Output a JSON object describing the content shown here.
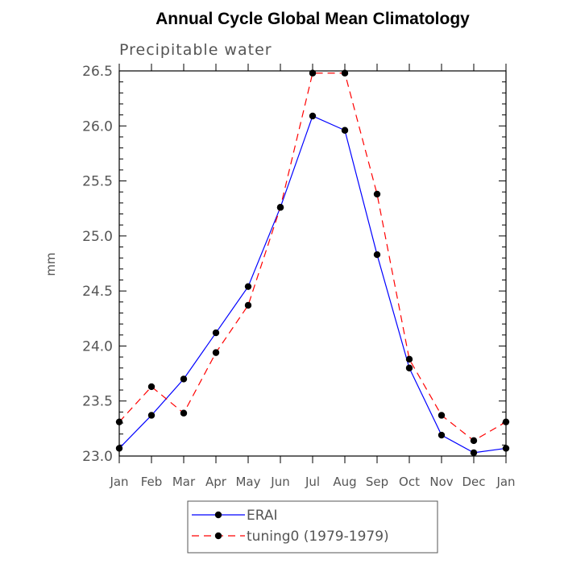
{
  "chart_data": {
    "type": "line",
    "title": "Annual Cycle Global Mean Climatology",
    "subtitle": "Precipitable water",
    "xlabel": "",
    "ylabel": "mm",
    "categories": [
      "Jan",
      "Feb",
      "Mar",
      "Apr",
      "May",
      "Jun",
      "Jul",
      "Aug",
      "Sep",
      "Oct",
      "Nov",
      "Dec",
      "Jan"
    ],
    "ylim": [
      23.0,
      26.5
    ],
    "yticks": [
      "23.0",
      "23.5",
      "24.0",
      "24.5",
      "25.0",
      "25.5",
      "26.0",
      "26.5"
    ],
    "grid": false,
    "legend_position": "bottom-center",
    "series": [
      {
        "name": "ERAI",
        "color": "#0000ff",
        "dash": "solid",
        "values": [
          23.07,
          23.37,
          23.7,
          24.12,
          24.54,
          25.26,
          26.09,
          25.96,
          24.83,
          23.8,
          23.19,
          23.03,
          23.07
        ]
      },
      {
        "name": "tuning0 (1979-1979)",
        "color": "#ff0000",
        "dash": "dashed",
        "values": [
          23.31,
          23.63,
          23.39,
          23.94,
          24.37,
          25.26,
          26.48,
          26.48,
          25.38,
          23.88,
          23.37,
          23.14,
          23.31
        ]
      }
    ]
  }
}
